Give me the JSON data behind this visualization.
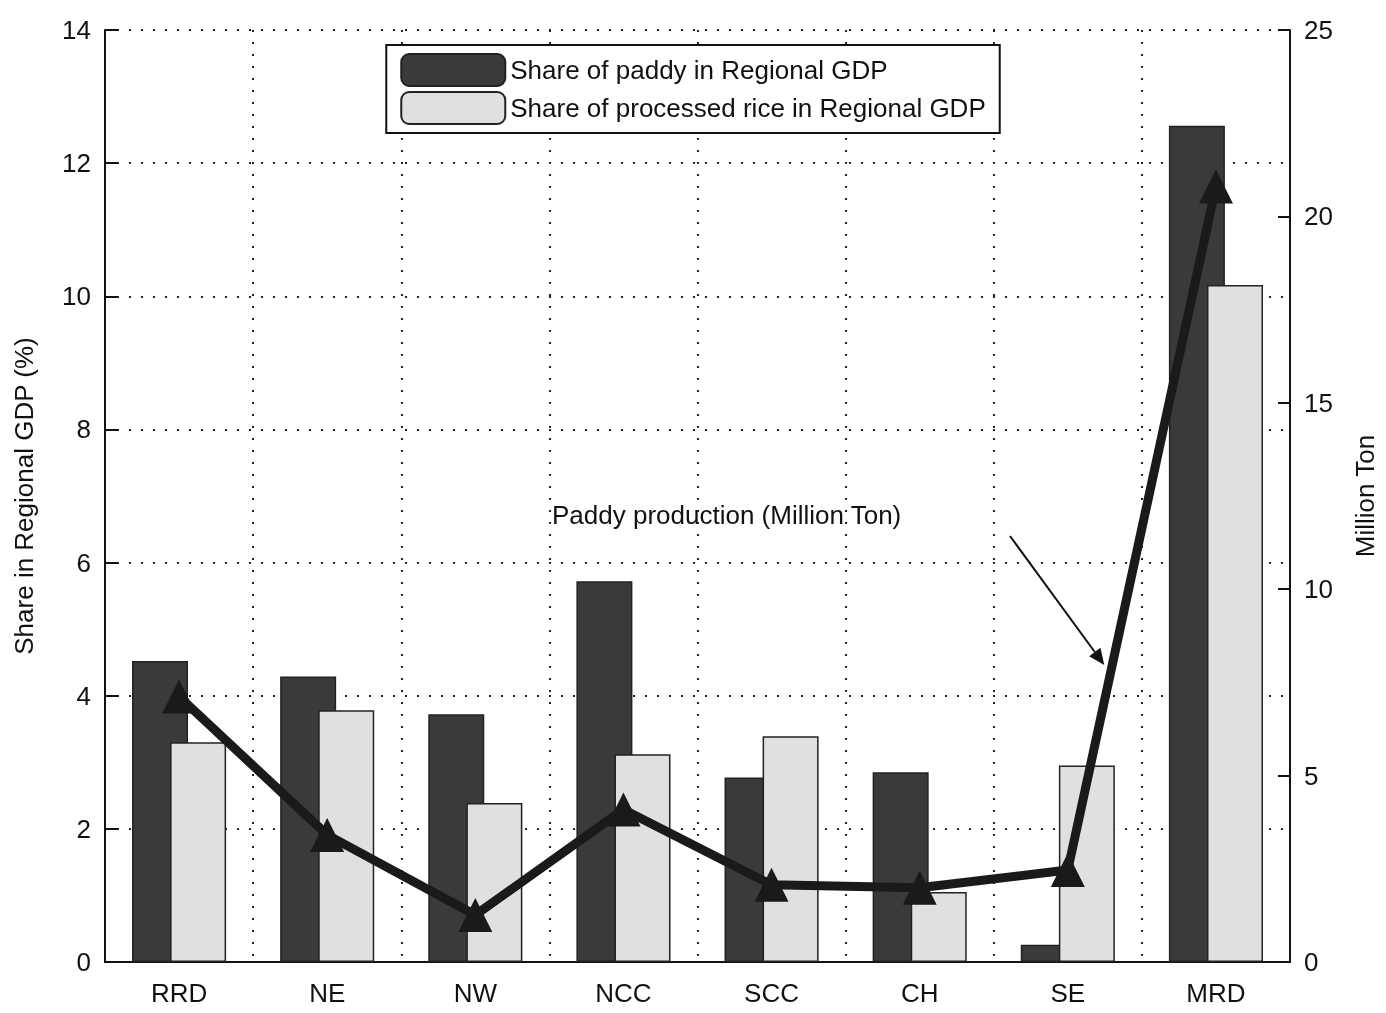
{
  "chart_data": {
    "type": "bar",
    "categories": [
      "RRD",
      "NE",
      "NW",
      "NCC",
      "SCC",
      "CH",
      "SE",
      "MRD"
    ],
    "series": [
      {
        "name": "Share of paddy in Regional GDP",
        "color": "#3a3a3a",
        "values": [
          4.52,
          4.29,
          3.72,
          5.72,
          2.77,
          2.85,
          0.26,
          12.56
        ]
      },
      {
        "name": "Share of processed rice in Regional GDP",
        "color": "#e0e0e0",
        "values": [
          3.3,
          3.78,
          2.39,
          3.12,
          3.39,
          1.05,
          2.95,
          10.17
        ]
      },
      {
        "type": "line",
        "axis": "y2",
        "color": "#1a1a1a",
        "values": [
          7.12,
          3.41,
          1.26,
          4.09,
          2.07,
          1.99,
          2.47,
          20.8
        ]
      }
    ],
    "ylabel": "Share in Regional GDP (%)",
    "y2label": "Million Ton",
    "ylim": [
      0,
      14
    ],
    "yticks": [
      0,
      2,
      4,
      6,
      8,
      10,
      12,
      14
    ],
    "y2lim": [
      0,
      25
    ],
    "y2ticks": [
      0,
      5,
      10,
      15,
      20,
      25
    ],
    "annotations": [
      "Paddy production (Million Ton)"
    ],
    "grid": true,
    "legend": "top",
    "marker": "triangle",
    "line_style": "solid"
  }
}
